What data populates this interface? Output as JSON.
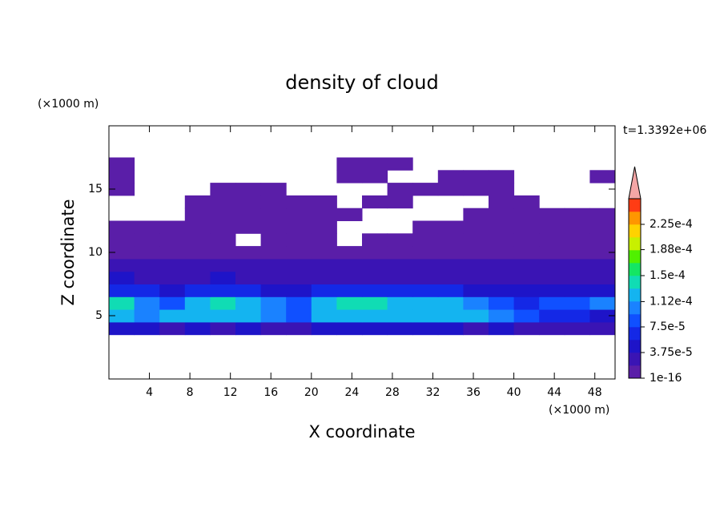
{
  "chart_data": {
    "type": "contour",
    "title": "density of cloud",
    "xlabel": "X coordinate",
    "ylabel": "Z coordinate",
    "xunit": "(×1000 m)",
    "yunit": "(×1000 m)",
    "time_label": "t=1.3392e+06",
    "xlim": [
      0,
      50
    ],
    "ylim": [
      0,
      20
    ],
    "xticks": [
      4,
      8,
      12,
      16,
      20,
      24,
      28,
      32,
      36,
      40,
      44,
      48
    ],
    "yticks": [
      5,
      10,
      15
    ],
    "x": [
      1.25,
      3.75,
      6.25,
      8.75,
      11.25,
      13.75,
      16.25,
      18.75,
      21.25,
      23.75,
      26.25,
      28.75,
      31.25,
      33.75,
      36.25,
      38.75,
      41.25,
      43.75,
      46.25,
      48.75
    ],
    "z": [
      4,
      5,
      6,
      7,
      8,
      9,
      10,
      11,
      12,
      13,
      14,
      15,
      16,
      17
    ],
    "values": [
      [
        4e-05,
        4e-05,
        3.5e-05,
        4e-05,
        3.5e-05,
        4e-05,
        3e-05,
        3.5e-05,
        4e-05,
        4e-05,
        4e-05,
        4e-05,
        4.5e-05,
        4e-05,
        3.5e-05,
        4e-05,
        3e-05,
        3e-05,
        3e-05,
        3e-05
      ],
      [
        0.00012,
        0.00011,
        0.000115,
        0.00012,
        0.000125,
        0.00012,
        0.00011,
        8e-05,
        0.000125,
        0.00013,
        0.00013,
        0.000125,
        0.00012,
        0.000125,
        0.00012,
        0.00011,
        9e-05,
        7e-05,
        6e-05,
        5e-05
      ],
      [
        0.000135,
        0.00011,
        9e-05,
        0.00012,
        0.000135,
        0.00013,
        0.0001,
        8e-05,
        0.00013,
        0.00015,
        0.00014,
        0.00013,
        0.000125,
        0.00012,
        0.0001,
        9e-05,
        7e-05,
        8e-05,
        9e-05,
        0.0001
      ],
      [
        7e-05,
        6e-05,
        5e-05,
        6e-05,
        7e-05,
        6e-05,
        5e-05,
        5e-05,
        6e-05,
        7e-05,
        6e-05,
        6e-05,
        6.5e-05,
        6e-05,
        5e-05,
        4.5e-05,
        4e-05,
        4e-05,
        4.5e-05,
        5e-05
      ],
      [
        4e-05,
        3.5e-05,
        3e-05,
        3.5e-05,
        4e-05,
        3.5e-05,
        3e-05,
        3e-05,
        3.5e-05,
        3.5e-05,
        3e-05,
        3e-05,
        3e-05,
        3e-05,
        3e-05,
        3e-05,
        3.5e-05,
        3e-05,
        3e-05,
        3e-05
      ],
      [
        2.5e-05,
        2.5e-05,
        2e-05,
        2e-05,
        2.5e-05,
        2.5e-05,
        2e-05,
        2e-05,
        2e-05,
        2e-05,
        2e-05,
        2e-05,
        2e-05,
        2e-05,
        2.5e-05,
        2.5e-05,
        2.5e-05,
        2e-05,
        2e-05,
        2e-05
      ],
      [
        1.5e-05,
        1.2e-05,
        8e-06,
        8e-06,
        1e-05,
        8e-06,
        6e-06,
        6e-06,
        6e-06,
        8e-06,
        1e-05,
        1e-05,
        1e-05,
        1.2e-05,
        1.5e-05,
        1.5e-05,
        1.5e-05,
        1.5e-05,
        1.2e-05,
        1e-05
      ],
      [
        5e-06,
        5e-06,
        5e-06,
        5e-06,
        5e-06,
        null,
        5e-06,
        5e-06,
        5e-06,
        null,
        5e-06,
        5e-06,
        5e-06,
        5e-06,
        5e-06,
        5e-06,
        5e-06,
        5e-06,
        5e-06,
        5e-06
      ],
      [
        5e-06,
        5e-06,
        5e-06,
        5e-06,
        5e-06,
        5e-06,
        5e-06,
        5e-06,
        5e-06,
        null,
        null,
        null,
        5e-06,
        5e-06,
        5e-06,
        5e-06,
        5e-06,
        5e-06,
        5e-06,
        5e-06
      ],
      [
        null,
        null,
        null,
        5e-06,
        5e-06,
        5e-06,
        5e-06,
        5e-06,
        5e-06,
        5e-06,
        null,
        null,
        null,
        null,
        5e-06,
        5e-06,
        5e-06,
        5e-06,
        5e-06,
        5e-06
      ],
      [
        null,
        null,
        null,
        5e-06,
        5e-06,
        5e-06,
        5e-06,
        5e-06,
        5e-06,
        null,
        5e-06,
        5e-06,
        null,
        null,
        null,
        5e-06,
        5e-06,
        null,
        null,
        null
      ],
      [
        5e-06,
        null,
        null,
        null,
        5e-06,
        5e-06,
        5e-06,
        null,
        null,
        null,
        null,
        5e-06,
        5e-06,
        5e-06,
        5e-06,
        5e-06,
        null,
        null,
        null,
        null
      ],
      [
        5e-06,
        null,
        null,
        null,
        null,
        null,
        null,
        null,
        null,
        5e-06,
        5e-06,
        null,
        null,
        5e-06,
        5e-06,
        5e-06,
        null,
        null,
        null,
        5e-06
      ],
      [
        5e-06,
        null,
        null,
        null,
        null,
        null,
        null,
        null,
        null,
        5e-06,
        5e-06,
        5e-06,
        null,
        null,
        null,
        null,
        null,
        null,
        null,
        null
      ]
    ],
    "clim": [
      1e-16,
      0.0002625
    ],
    "colors": [
      "#5a1ea8",
      "#3a14b4",
      "#1e14c8",
      "#1428e6",
      "#1050ff",
      "#1a82ff",
      "#14b4f0",
      "#10dcb4",
      "#14e664",
      "#50f000",
      "#c8f000",
      "#ffd200",
      "#ff9600",
      "#ff3c14"
    ],
    "extend_color": "#f4a6a6",
    "cticks": [
      {
        "value": 1e-16,
        "label": "1e-16"
      },
      {
        "value": 3.75e-05,
        "label": "3.75e-5"
      },
      {
        "value": 7.5e-05,
        "label": "7.5e-5"
      },
      {
        "value": 0.000112,
        "label": "1.12e-4"
      },
      {
        "value": 0.00015,
        "label": "1.5e-4"
      },
      {
        "value": 0.000188,
        "label": "1.88e-4"
      },
      {
        "value": 0.000225,
        "label": "2.25e-4"
      }
    ]
  }
}
